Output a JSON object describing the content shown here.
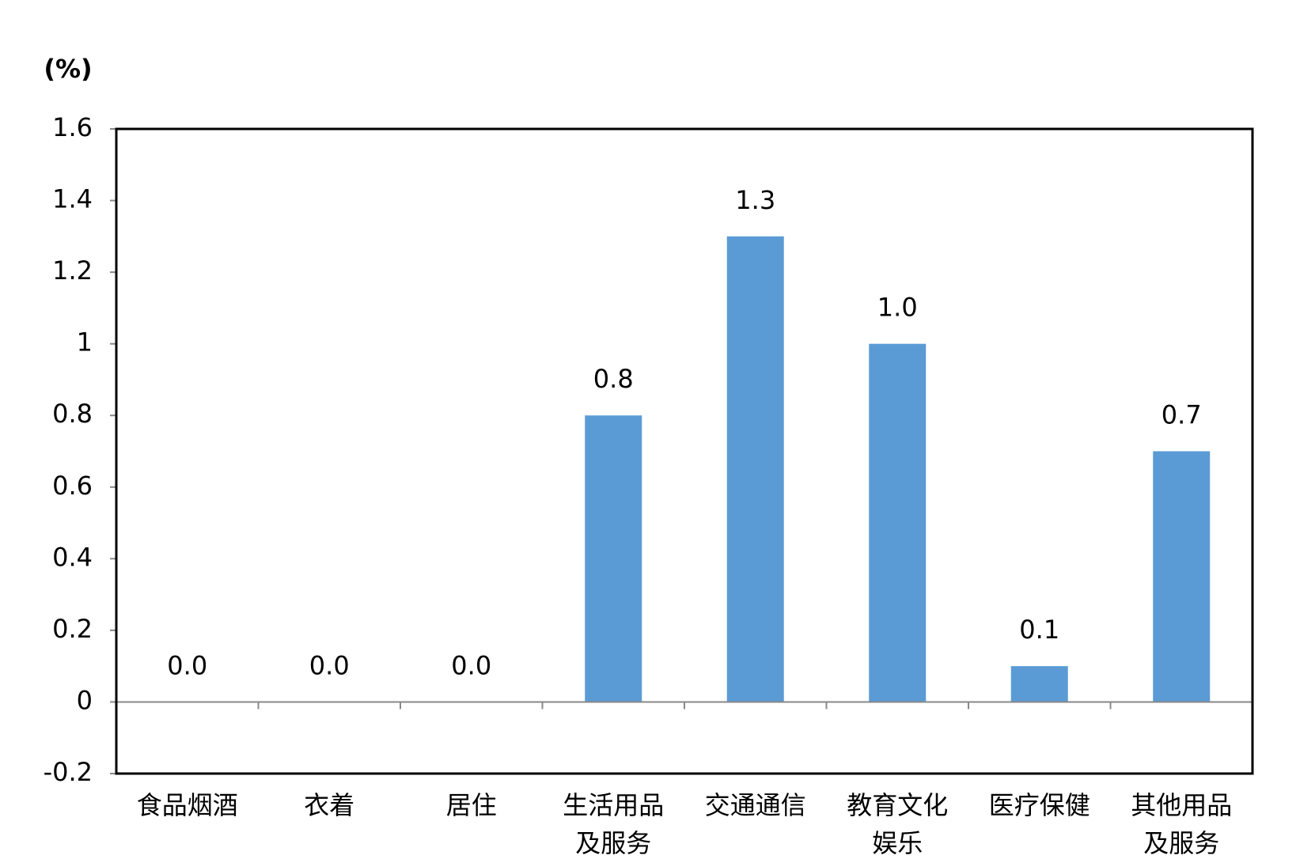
{
  "chart_data": {
    "type": "bar",
    "y_unit": "(%)",
    "categories": [
      "食品烟酒",
      "衣着",
      "居住",
      "生活用品及服务",
      "交通通信",
      "教育文化娱乐",
      "医疗保健",
      "其他用品及服务"
    ],
    "values": [
      0,
      0,
      0,
      0.8,
      1.3,
      1.0,
      0.1,
      0.7
    ],
    "value_labels": [
      "0.0",
      "0.0",
      "0.0",
      "0.8",
      "1.3",
      "1.0",
      "0.1",
      "0.7"
    ],
    "color": "#5b9bd5",
    "ylim": [
      -0.2,
      1.6
    ],
    "yticks": [
      -0.2,
      0,
      0.2,
      0.4,
      0.6,
      0.8,
      1,
      1.2,
      1.4,
      1.6
    ]
  }
}
